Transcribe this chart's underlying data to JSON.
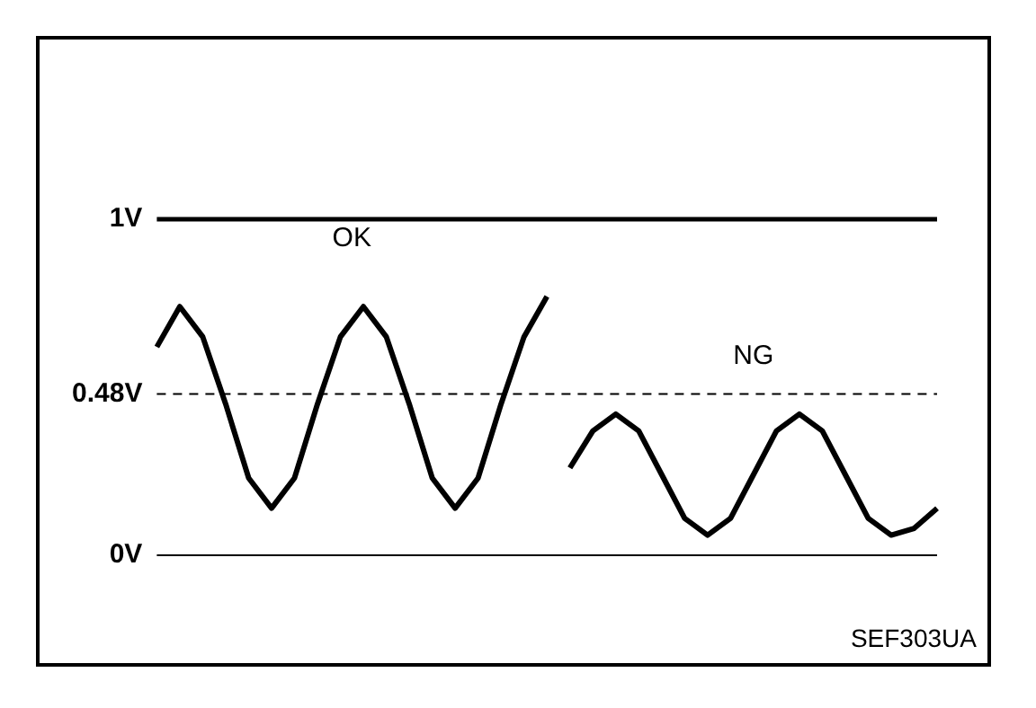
{
  "chart_data": {
    "type": "line",
    "tick_labels": "y",
    "grid": false,
    "legend": false,
    "marker": "none",
    "line_style": "solid",
    "categories": [
      null,
      null,
      null,
      null,
      null,
      null,
      null,
      null,
      null,
      null,
      null,
      null,
      null,
      null,
      null,
      null,
      null,
      null,
      null,
      null,
      null,
      null,
      null,
      null,
      null,
      null,
      null,
      null,
      null,
      null,
      null,
      null,
      null,
      null,
      null
    ],
    "ylim": [
      0,
      1
    ],
    "yticks": [
      {
        "value": 0,
        "label": "0V"
      },
      {
        "value": 0.48,
        "label": "0.48V"
      },
      {
        "value": 1,
        "label": "1V"
      }
    ],
    "series": [
      {
        "name": "OK",
        "color": "#000000",
        "values": [
          0.62,
          0.74,
          0.65,
          0.45,
          0.23,
          0.14,
          0.23,
          0.45,
          0.65,
          0.74,
          0.65,
          0.45,
          0.23,
          0.14,
          0.23,
          0.45,
          0.65,
          0.77,
          null,
          null,
          null,
          null,
          null,
          null,
          null,
          null,
          null,
          null,
          null,
          null,
          null,
          null,
          null,
          null,
          null
        ]
      },
      {
        "name": "NG",
        "color": "#000000",
        "values": [
          null,
          null,
          null,
          null,
          null,
          null,
          null,
          null,
          null,
          null,
          null,
          null,
          null,
          null,
          null,
          null,
          null,
          null,
          0.26,
          0.37,
          0.42,
          0.37,
          0.24,
          0.11,
          0.06,
          0.11,
          0.24,
          0.37,
          0.42,
          0.37,
          0.24,
          0.11,
          0.06,
          0.08,
          0.14
        ]
      }
    ],
    "ref_lines": [
      {
        "axis": "y",
        "value": 1,
        "line_style": "solid"
      },
      {
        "axis": "y",
        "value": 0.48,
        "line_style": "dashed"
      },
      {
        "axis": "y",
        "value": 0,
        "line_style": "solid"
      }
    ],
    "annotations": [
      "SEF303UA"
    ]
  }
}
